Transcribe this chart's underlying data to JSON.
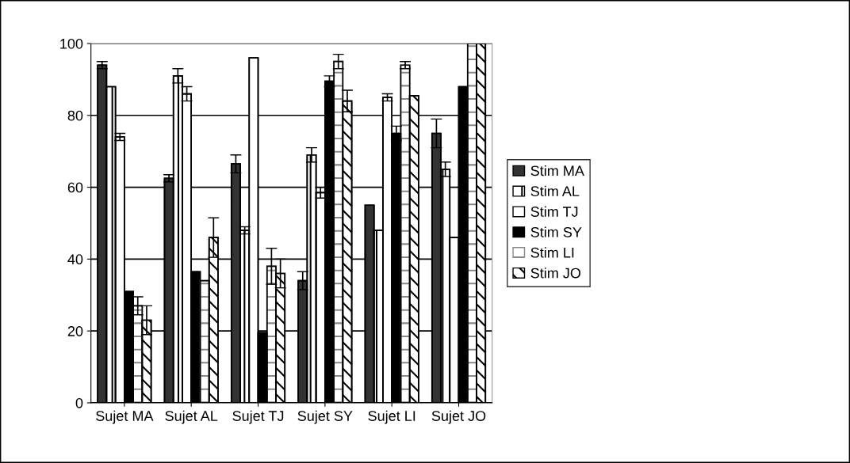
{
  "chart_data": {
    "type": "bar",
    "categories": [
      "Sujet MA",
      "Sujet AL",
      "Sujet TJ",
      "Sujet SY",
      "Sujet LI",
      "Sujet JO"
    ],
    "series": [
      {
        "name": "Stim MA",
        "color": "#333333",
        "values": [
          94,
          62.5,
          66.5,
          34,
          55,
          75
        ],
        "errors": [
          1,
          1,
          2.5,
          2.5,
          null,
          4
        ]
      },
      {
        "name": "Stim AL",
        "color": "#000000",
        "values": [
          88,
          91,
          48,
          69,
          48,
          65
        ],
        "errors": [
          null,
          2,
          1,
          2,
          null,
          2
        ]
      },
      {
        "name": "Stim TJ",
        "color": "#ffffff",
        "values": [
          74,
          86,
          96,
          58.5,
          85,
          46
        ],
        "errors": [
          1,
          2,
          null,
          1.5,
          1,
          null
        ]
      },
      {
        "name": "Stim SY",
        "color": "#000000",
        "values": [
          31,
          36.5,
          19.5,
          89.5,
          75,
          88
        ],
        "errors": [
          null,
          null,
          null,
          1.5,
          2,
          null
        ]
      },
      {
        "name": "Stim LI",
        "color": "#888888",
        "values": [
          27,
          34,
          38,
          95,
          94,
          100
        ],
        "errors": [
          2.5,
          null,
          5,
          2,
          1,
          null
        ]
      },
      {
        "name": "Stim JO",
        "color": "#000000",
        "values": [
          23,
          46,
          36,
          84,
          85.5,
          100
        ],
        "errors": [
          4,
          5.5,
          4,
          3,
          null,
          null
        ]
      }
    ],
    "ylim": [
      0,
      100
    ],
    "yticks": [
      0,
      20,
      40,
      60,
      80,
      100
    ],
    "grid": "y",
    "legend": "right"
  }
}
